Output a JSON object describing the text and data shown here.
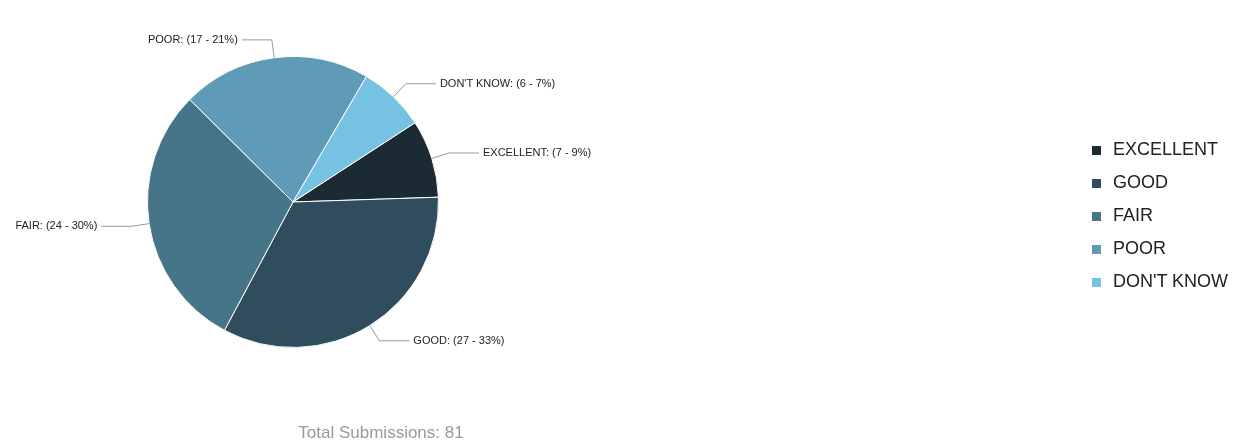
{
  "chart_data": {
    "type": "pie",
    "categories": [
      "EXCELLENT",
      "GOOD",
      "FAIR",
      "POOR",
      "DON'T KNOW"
    ],
    "values": [
      7,
      27,
      24,
      17,
      6
    ],
    "colors": [
      "#1b2a33",
      "#2f4d5c",
      "#467488",
      "#5f9bb6",
      "#77c1e2"
    ],
    "value_labels": [
      "EXCELLENT: (7 - 9%)",
      "GOOD: (27 - 33%)",
      "FAIR: (24 - 30%)",
      "POOR: (17 - 21%)",
      "DON'T KNOW: (6 - 7%)"
    ],
    "legend": "right",
    "annotations": [
      "Total Submissions: 81"
    ]
  }
}
